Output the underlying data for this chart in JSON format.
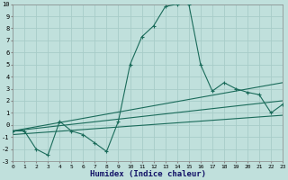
{
  "xlabel": "Humidex (Indice chaleur)",
  "bg_color": "#c0e0dc",
  "grid_color": "#a8ccc8",
  "line_color": "#1a6b5a",
  "xlim": [
    0,
    23
  ],
  "ylim": [
    -3,
    10
  ],
  "xticks": [
    0,
    1,
    2,
    3,
    4,
    5,
    6,
    7,
    8,
    9,
    10,
    11,
    12,
    13,
    14,
    15,
    16,
    17,
    18,
    19,
    20,
    21,
    22,
    23
  ],
  "yticks": [
    -3,
    -2,
    -1,
    0,
    1,
    2,
    3,
    4,
    5,
    6,
    7,
    8,
    9,
    10
  ],
  "main_x": [
    0,
    1,
    2,
    3,
    4,
    5,
    6,
    7,
    8,
    9,
    10,
    11,
    12,
    13,
    14,
    15,
    16,
    17,
    18,
    19,
    20,
    21,
    22,
    23
  ],
  "main_y": [
    -0.5,
    -0.5,
    -2.0,
    -2.5,
    0.3,
    -0.5,
    -0.8,
    -1.5,
    -2.2,
    0.3,
    5.0,
    7.3,
    8.2,
    9.8,
    10.0,
    10.0,
    5.0,
    2.8,
    3.5,
    3.0,
    2.7,
    2.5,
    1.0,
    1.7
  ],
  "trend1_x": [
    0,
    23
  ],
  "trend1_y": [
    -0.5,
    3.5
  ],
  "trend2_x": [
    0,
    23
  ],
  "trend2_y": [
    -0.5,
    2.0
  ],
  "trend3_x": [
    0,
    23
  ],
  "trend3_y": [
    -0.8,
    0.8
  ]
}
